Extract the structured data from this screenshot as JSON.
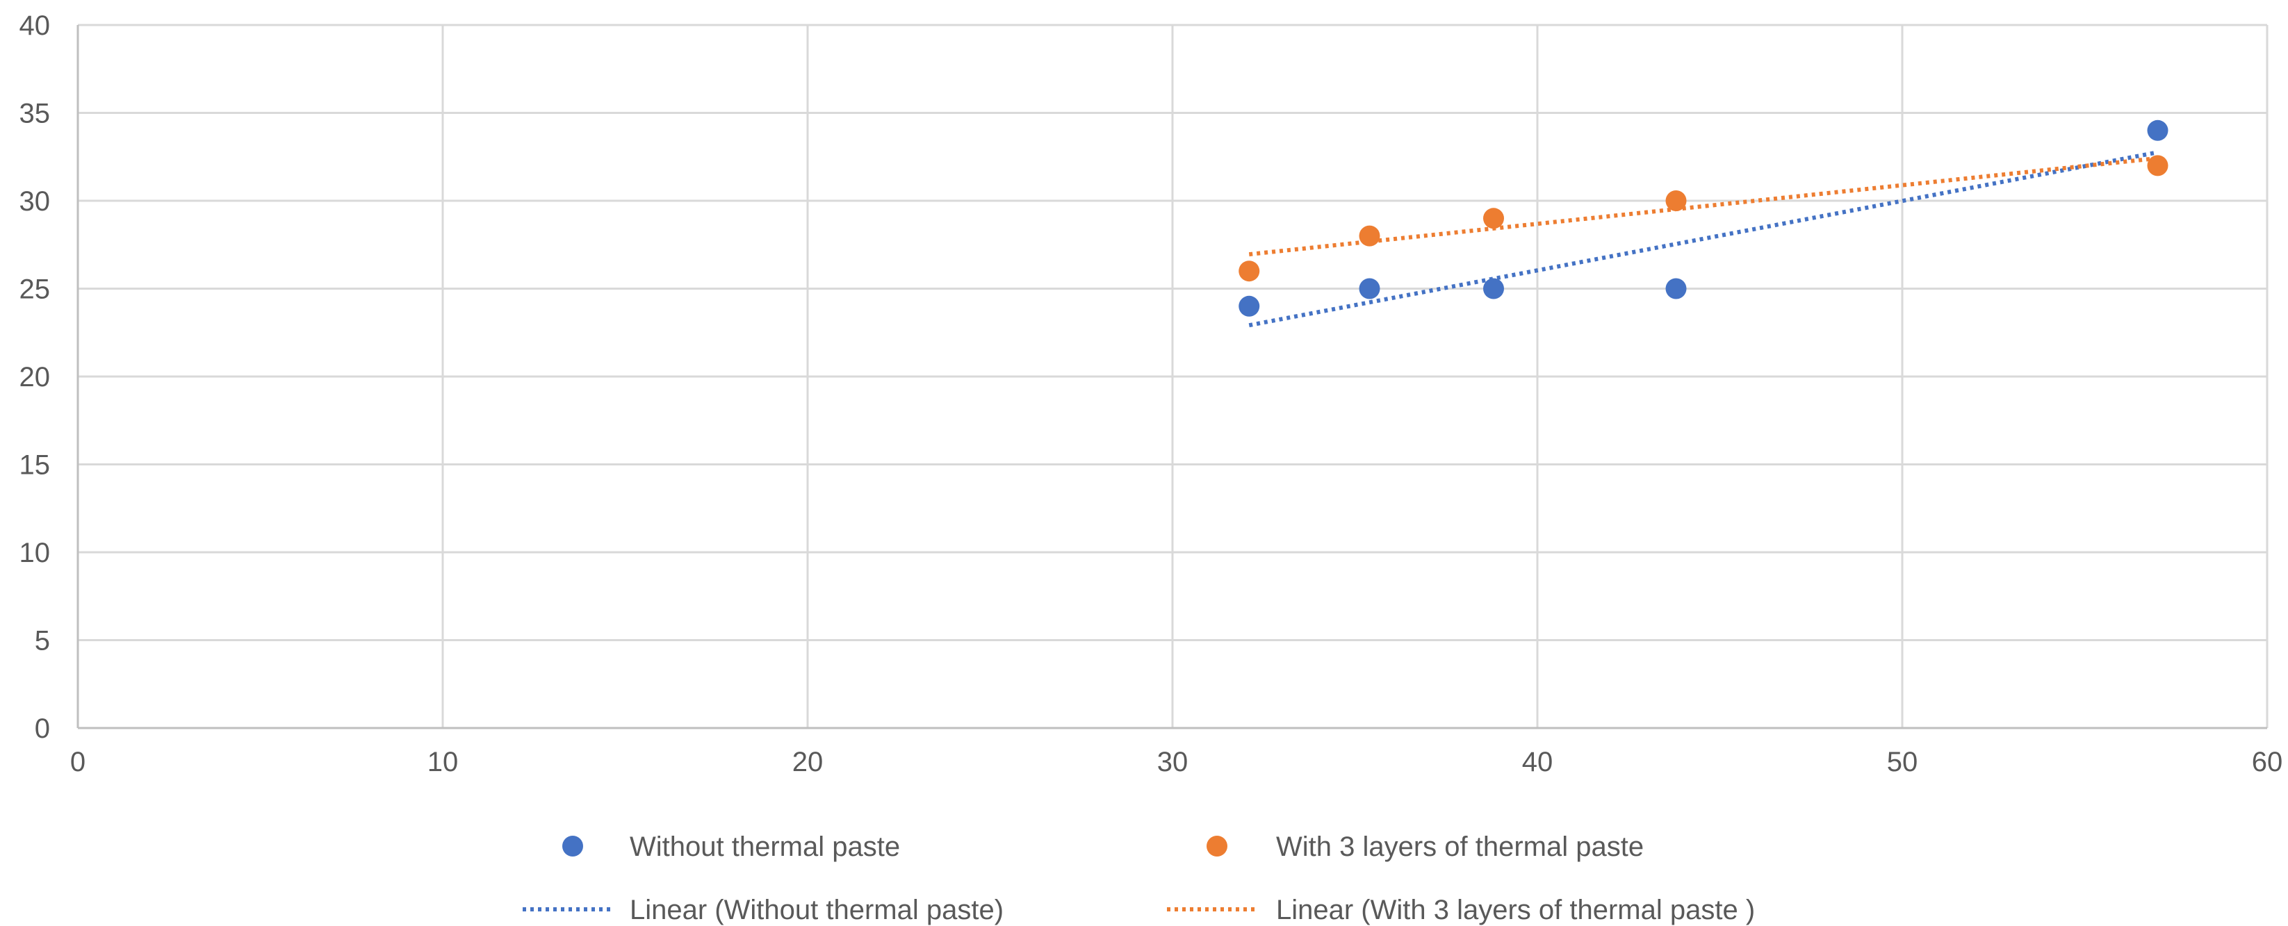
{
  "chart_data": {
    "type": "scatter",
    "title": "",
    "xlabel": "",
    "ylabel": "",
    "xlim": [
      0,
      60
    ],
    "ylim": [
      0,
      40
    ],
    "x_ticks": [
      0,
      10,
      20,
      30,
      40,
      50,
      60
    ],
    "y_ticks": [
      0,
      5,
      10,
      15,
      20,
      25,
      30,
      35,
      40
    ],
    "grid": true,
    "legend_position": "bottom",
    "series": [
      {
        "name": "Without thermal paste",
        "color": "#4472C4",
        "points": [
          {
            "x": 32.1,
            "y": 24
          },
          {
            "x": 35.4,
            "y": 25
          },
          {
            "x": 38.8,
            "y": 25
          },
          {
            "x": 43.8,
            "y": 25
          },
          {
            "x": 57,
            "y": 34
          }
        ]
      },
      {
        "name": "With 3 layers of thermal paste",
        "color": "#ED7D31",
        "points": [
          {
            "x": 32.1,
            "y": 26
          },
          {
            "x": 35.4,
            "y": 28
          },
          {
            "x": 38.8,
            "y": 29
          },
          {
            "x": 43.8,
            "y": 30
          },
          {
            "x": 57,
            "y": 32
          }
        ]
      }
    ],
    "trendlines": [
      {
        "name": "Linear (Without thermal paste)",
        "series": "Without thermal paste",
        "type": "linear",
        "color": "#4472C4",
        "style": "dotted"
      },
      {
        "name": "Linear (With 3 layers of thermal paste )",
        "series": "With 3 layers of thermal paste",
        "type": "linear",
        "color": "#ED7D31",
        "style": "dotted"
      }
    ]
  }
}
